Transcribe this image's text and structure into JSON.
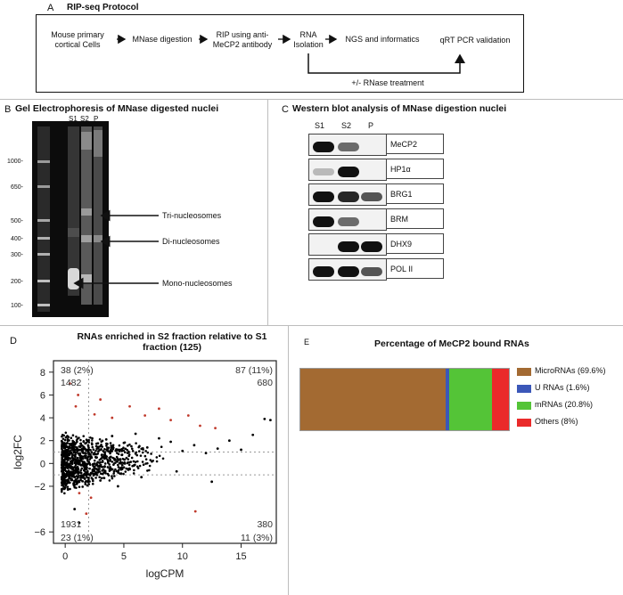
{
  "panel_a": {
    "letter": "A",
    "title": "RIP-seq Protocol",
    "steps": {
      "cells": [
        "Mouse primary",
        "cortical Cells"
      ],
      "mnase": "MNase digestion",
      "rip": [
        "RIP using anti-",
        "MeCP2 antibody"
      ],
      "rna": [
        "RNA",
        "Isolation"
      ],
      "ngs": "NGS and informatics",
      "qrt": "qRT PCR validation"
    },
    "rnase_note": "+/- RNase treatment"
  },
  "panel_b": {
    "letter": "B",
    "title": "Gel Electrophoresis of MNase digested nuclei",
    "lanes": [
      "S1",
      "S2",
      "P"
    ],
    "ladder": [
      "1000-",
      "650-",
      "500-",
      "400-",
      "300-",
      "200-",
      "100-"
    ],
    "annotations": [
      "Tri-nucleosomes",
      "Di-nucleosomes",
      "Mono-nucleosomes"
    ]
  },
  "panel_c": {
    "letter": "C",
    "title": "Western blot analysis of MNase digestion nuclei",
    "lanes": [
      "S1",
      "S2",
      "P"
    ],
    "proteins": [
      {
        "name": "MeCP2",
        "bands": [
          1.0,
          0.6,
          0.0
        ]
      },
      {
        "name": "HP1α",
        "bands": [
          0.25,
          1.0,
          0.0
        ]
      },
      {
        "name": "BRG1",
        "bands": [
          1.0,
          0.9,
          0.7
        ]
      },
      {
        "name": "BRM",
        "bands": [
          1.0,
          0.6,
          0.0
        ]
      },
      {
        "name": "DHX9",
        "bands": [
          0.0,
          1.0,
          1.0
        ]
      },
      {
        "name": "POL II",
        "bands": [
          1.0,
          1.0,
          0.7
        ]
      }
    ]
  },
  "panel_d": {
    "letter": "D",
    "title_lines": [
      "RNAs enriched in S2 fraction relative to S1",
      "fraction (125)"
    ],
    "corner_labels": {
      "tl1": "38 (2%)",
      "tl2": "1482",
      "tr1": "87 (11%)",
      "tr2": "680",
      "bl1": "1931",
      "bl2": "23 (1%)",
      "br1": "380",
      "br2": "11 (3%)"
    }
  },
  "chart_data": {
    "type": "scatter",
    "title": "RNAs enriched in S2 fraction relative to S1 fraction (125)",
    "xlabel": "logCPM",
    "ylabel": "log2FC",
    "xlim": [
      -1,
      18
    ],
    "ylim": [
      -7,
      9
    ],
    "xticks": [
      "0",
      "5",
      "10",
      "15"
    ],
    "yticks": [
      "−6",
      "−2",
      "0",
      "2",
      "4",
      "6",
      "8"
    ],
    "threshold_lines": {
      "x": 2,
      "y": [
        -1,
        1
      ]
    },
    "series": [
      {
        "name": "",
        "color": "#000000",
        "points": [
          [
            0.2,
            0.3
          ],
          [
            0.5,
            -0.4
          ],
          [
            1.0,
            1.2
          ],
          [
            1.5,
            -1.1
          ],
          [
            2.5,
            0.8
          ],
          [
            3.0,
            1.5
          ],
          [
            3.5,
            2.1
          ],
          [
            4.0,
            2.4
          ],
          [
            5.0,
            1.8
          ],
          [
            6.0,
            2.6
          ],
          [
            7.0,
            1.4
          ],
          [
            8.0,
            2.2
          ],
          [
            9.0,
            1.9
          ],
          [
            10.0,
            1.1
          ],
          [
            11.0,
            1.6
          ],
          [
            12.0,
            0.9
          ],
          [
            13.0,
            1.3
          ],
          [
            14.0,
            2.0
          ],
          [
            15.0,
            1.2
          ],
          [
            16.0,
            2.5
          ],
          [
            17.0,
            3.9
          ],
          [
            17.5,
            3.8
          ],
          [
            6.5,
            -1.2
          ],
          [
            9.5,
            -0.7
          ],
          [
            4.5,
            -2.0
          ],
          [
            3.0,
            -1.5
          ],
          [
            0.8,
            -4.0
          ],
          [
            1.2,
            -5.2
          ],
          [
            12.5,
            -1.6
          ]
        ]
      },
      {
        "name": "",
        "color": "#c0392b",
        "points": [
          [
            0.4,
            7.0
          ],
          [
            1.1,
            6.0
          ],
          [
            0.9,
            5.0
          ],
          [
            2.5,
            4.3
          ],
          [
            3.0,
            5.6
          ],
          [
            4.0,
            4.0
          ],
          [
            5.5,
            5.0
          ],
          [
            6.8,
            4.2
          ],
          [
            8.0,
            4.8
          ],
          [
            9.0,
            3.8
          ],
          [
            10.5,
            4.2
          ],
          [
            11.5,
            3.3
          ],
          [
            12.8,
            3.1
          ],
          [
            1.2,
            -2.6
          ],
          [
            2.2,
            -3.0
          ],
          [
            1.8,
            -4.4
          ],
          [
            11.1,
            -4.2
          ]
        ]
      }
    ]
  },
  "panel_e": {
    "letter": "E",
    "title": "Percentage of MeCP2 bound RNAs",
    "segments": [
      {
        "label": "MicroRNAs (69.6%)",
        "value": 69.6,
        "color": "#a36a32"
      },
      {
        "label": "U RNAs (1.6%)",
        "value": 1.6,
        "color": "#3b57b8"
      },
      {
        "label": "mRNAs (20.8%)",
        "value": 20.8,
        "color": "#54c437"
      },
      {
        "label": "Others (8%)",
        "value": 8,
        "color": "#ea2a2a"
      }
    ]
  }
}
